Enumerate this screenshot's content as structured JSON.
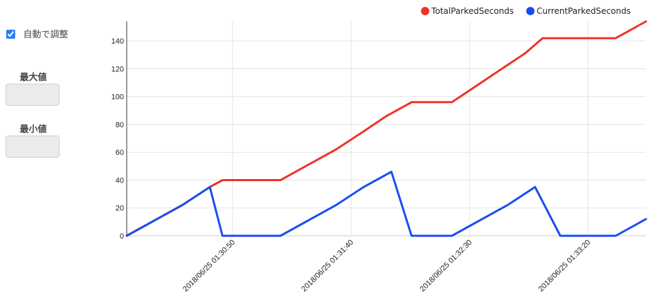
{
  "controls": {
    "auto_adjust_label": "自動で調整",
    "auto_adjust_checked": true,
    "max_label": "最大値",
    "min_label": "最小値",
    "max_value": "",
    "min_value": ""
  },
  "colors": {
    "total": "#f03226",
    "current": "#1a4df0",
    "grid": "#e3e3e3",
    "axis": "#333333"
  },
  "chart_data": {
    "type": "line",
    "title": "",
    "xlabel": "",
    "ylabel": "",
    "ylim": [
      0,
      154
    ],
    "yticks": [
      0,
      20,
      40,
      60,
      80,
      100,
      120,
      140
    ],
    "xlim": [
      0,
      206
    ],
    "x_tick_positions": [
      42,
      89,
      136,
      183
    ],
    "x_tick_labels": [
      "2018/06/25 01:30:50",
      "2018/06/25 01:31:40",
      "2018/06/25 01:32:30",
      "2018/06/25 01:33:20"
    ],
    "grid": true,
    "legend_position": "top-right",
    "series": [
      {
        "name": "TotalParkedSeconds",
        "color": "#f03226",
        "x": [
          0,
          22,
          33,
          38,
          61,
          83,
          94,
          103,
          113,
          129,
          148,
          158,
          165,
          179,
          194,
          206
        ],
        "y": [
          0,
          22,
          35,
          40,
          40,
          62,
          75,
          86,
          96,
          96,
          119,
          131,
          142,
          142,
          142,
          154
        ]
      },
      {
        "name": "CurrentParkedSeconds",
        "color": "#1a4df0",
        "x": [
          0,
          22,
          33,
          38,
          61,
          83,
          94,
          105,
          113,
          129,
          151,
          162,
          172,
          194,
          206
        ],
        "y": [
          0,
          22,
          35,
          0,
          0,
          22,
          35,
          46,
          0,
          0,
          22,
          35,
          0,
          0,
          12
        ]
      }
    ]
  }
}
